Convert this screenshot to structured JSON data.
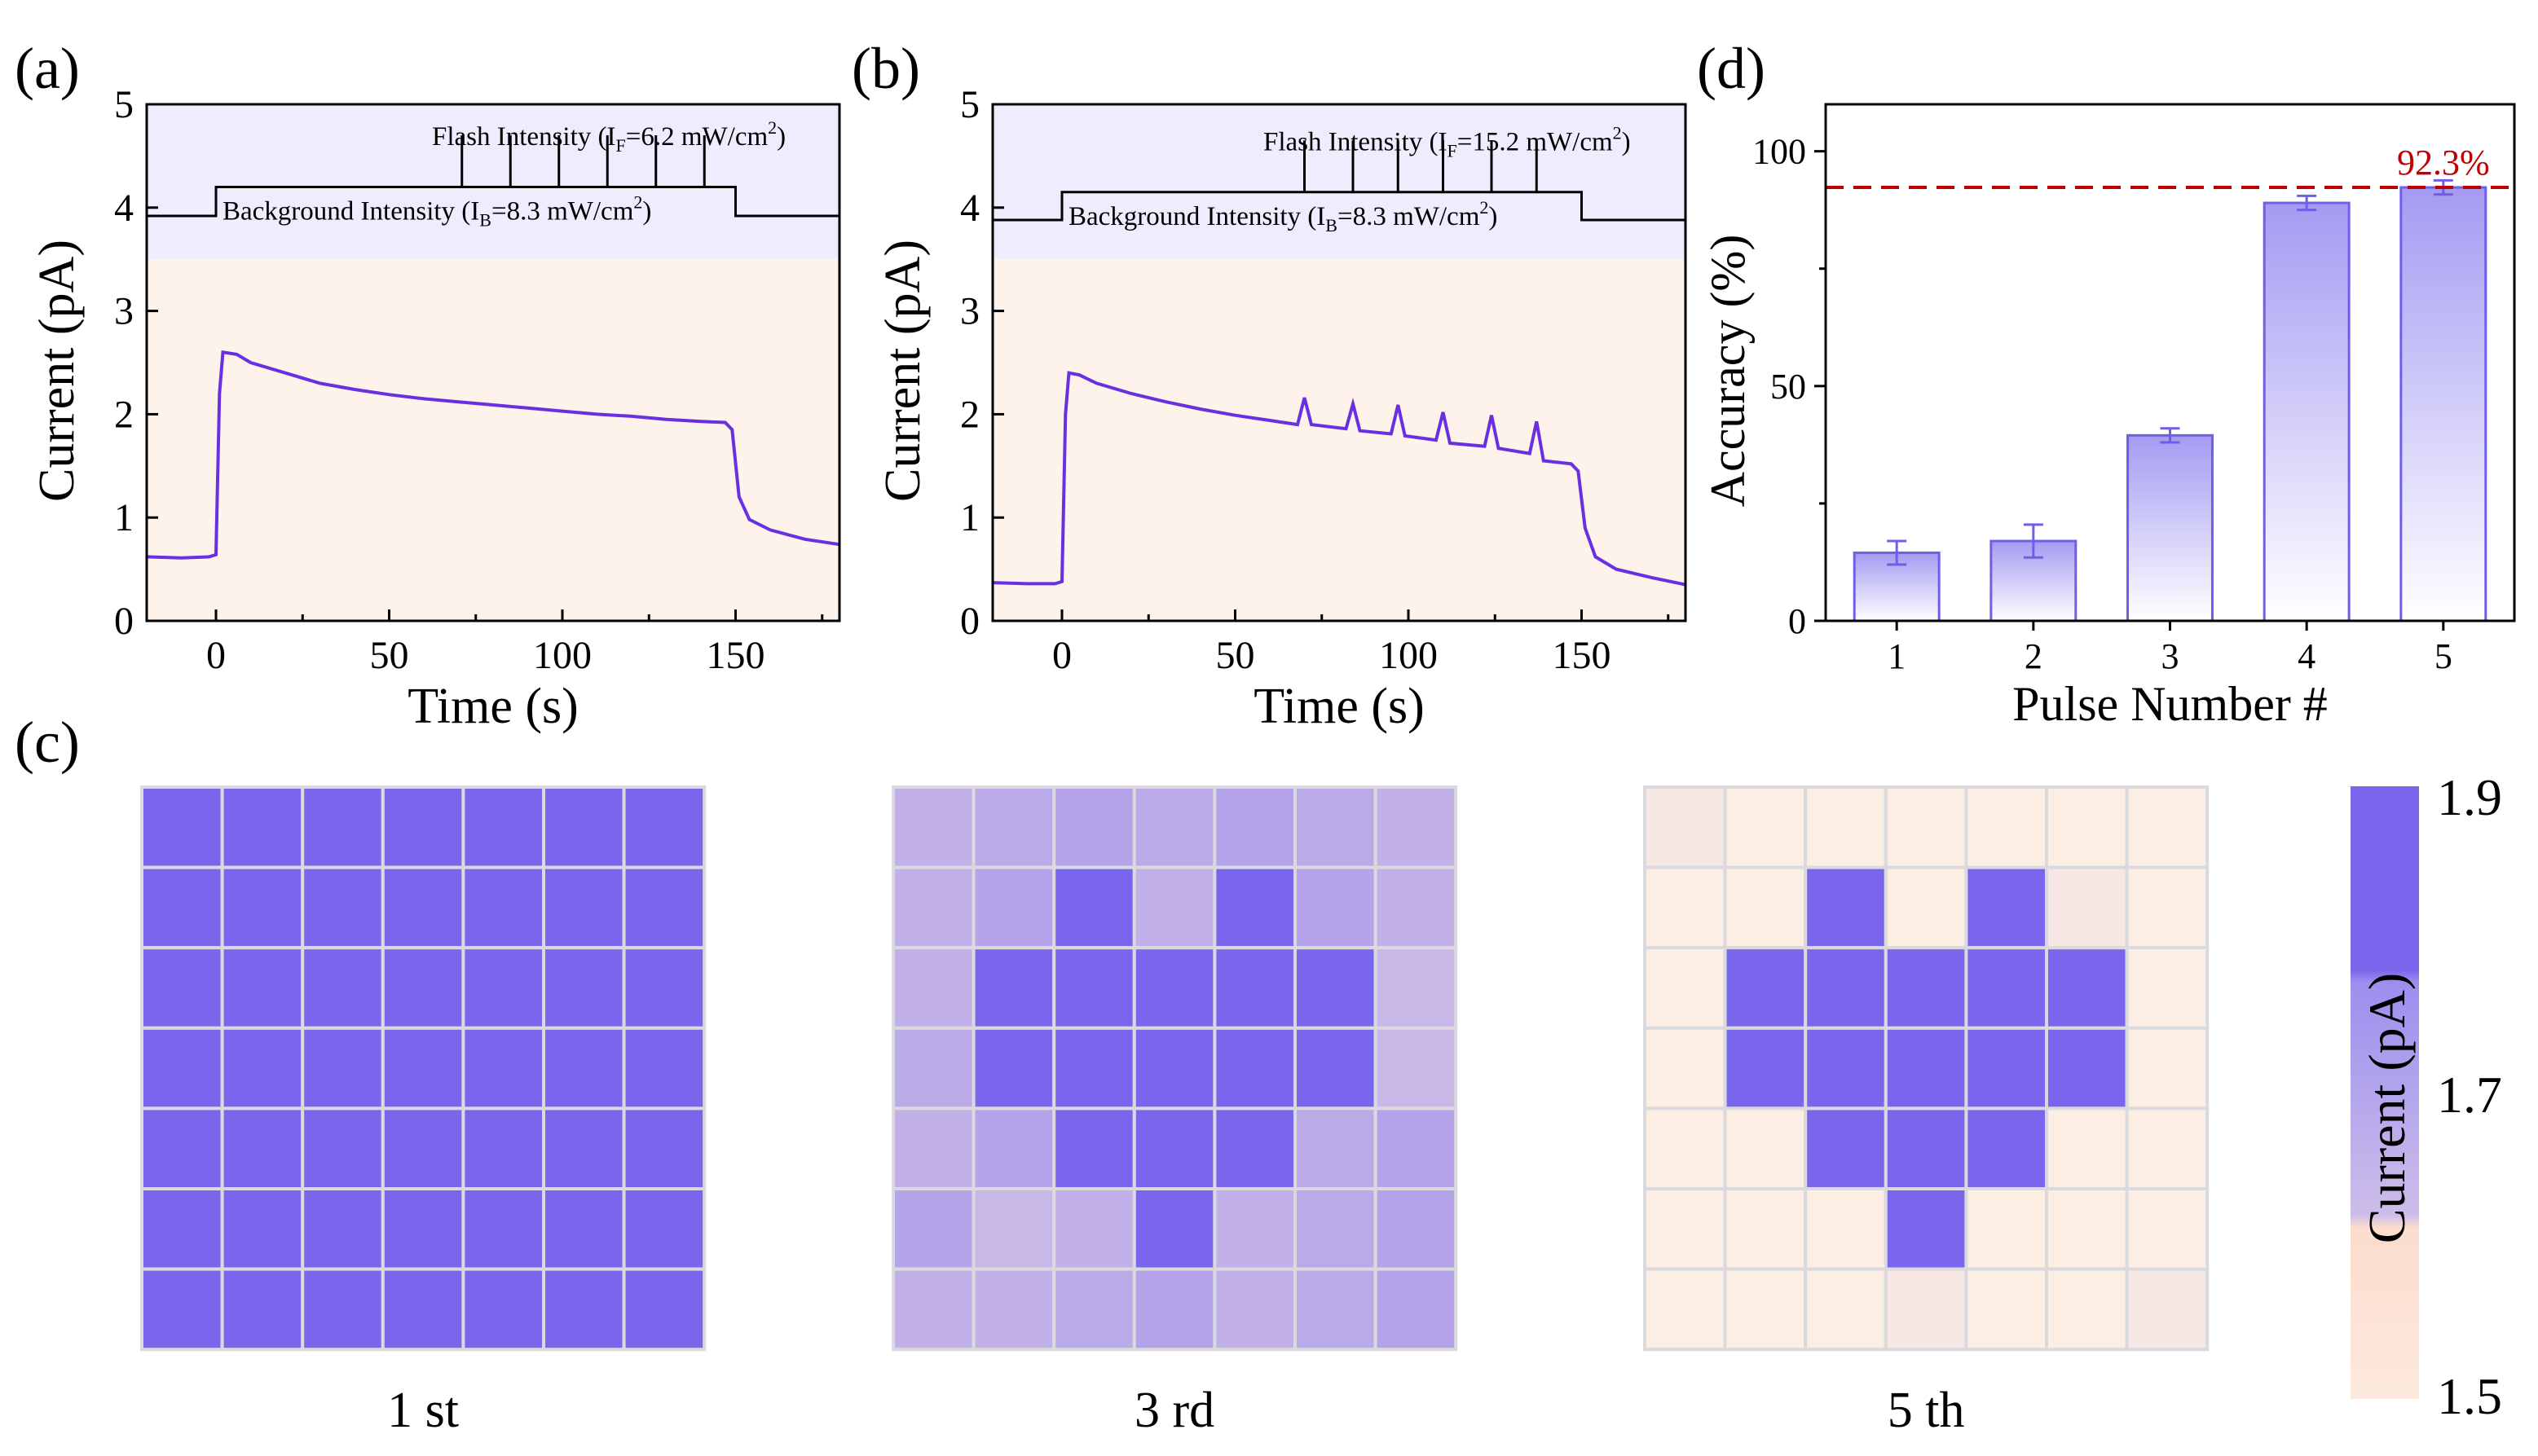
{
  "panel_labels": {
    "a": "(a)",
    "b": "(b)",
    "c": "(c)",
    "d": "(d)"
  },
  "chart_data": [
    {
      "id": "a",
      "type": "line",
      "xlabel": "Time (s)",
      "ylabel": "Current (pA)",
      "xlim": [
        -20,
        180
      ],
      "ylim": [
        0,
        5
      ],
      "xticks": [
        0,
        50,
        100,
        150
      ],
      "yticks": [
        0,
        1,
        2,
        3,
        4,
        5
      ],
      "background_region_upper": [
        3.5,
        5
      ],
      "flash_label": {
        "prefix": "Flash Intensity (I",
        "sub": "F",
        "mid": "=6.2 mW/cm",
        "sup": "2",
        "suffix": ")"
      },
      "bg_label": {
        "prefix": "Background Intensity (I",
        "sub": "B",
        "mid": "=8.3 mW/cm",
        "sup": "2",
        "suffix": ")"
      },
      "stimulus": {
        "base": 3.92,
        "high": 4.2,
        "on": 0,
        "off": 150,
        "flash_times": [
          71,
          85,
          99,
          113,
          127,
          141
        ],
        "flash_height": 0.5
      },
      "points": [
        [
          -20,
          0.62
        ],
        [
          -10,
          0.61
        ],
        [
          -2,
          0.62
        ],
        [
          0,
          0.64
        ],
        [
          1,
          2.2
        ],
        [
          2,
          2.6
        ],
        [
          6,
          2.58
        ],
        [
          10,
          2.5
        ],
        [
          20,
          2.4
        ],
        [
          30,
          2.3
        ],
        [
          40,
          2.24
        ],
        [
          50,
          2.19
        ],
        [
          60,
          2.15
        ],
        [
          70,
          2.12
        ],
        [
          80,
          2.09
        ],
        [
          90,
          2.06
        ],
        [
          100,
          2.03
        ],
        [
          110,
          2.0
        ],
        [
          120,
          1.98
        ],
        [
          130,
          1.95
        ],
        [
          140,
          1.93
        ],
        [
          147,
          1.92
        ],
        [
          149,
          1.85
        ],
        [
          151,
          1.2
        ],
        [
          154,
          0.98
        ],
        [
          160,
          0.88
        ],
        [
          170,
          0.79
        ],
        [
          180,
          0.74
        ]
      ]
    },
    {
      "id": "b",
      "type": "line",
      "xlabel": "Time (s)",
      "ylabel": "Current (pA)",
      "xlim": [
        -20,
        180
      ],
      "ylim": [
        0,
        5
      ],
      "xticks": [
        0,
        50,
        100,
        150
      ],
      "yticks": [
        0,
        1,
        2,
        3,
        4,
        5
      ],
      "background_region_upper": [
        3.5,
        5
      ],
      "flash_label": {
        "prefix": "Flash Intensity (I",
        "sub": "F",
        "mid": "=15.2 mW/cm",
        "sup": "2",
        "suffix": ")"
      },
      "bg_label": {
        "prefix": "Background Intensity (I",
        "sub": "B",
        "mid": "=8.3 mW/cm",
        "sup": "2",
        "suffix": ")"
      },
      "stimulus": {
        "base": 3.88,
        "high": 4.15,
        "on": 0,
        "off": 150,
        "flash_times": [
          70,
          84,
          97,
          110,
          124,
          137
        ],
        "flash_height": 0.5
      },
      "points": [
        [
          -20,
          0.37
        ],
        [
          -10,
          0.36
        ],
        [
          -2,
          0.36
        ],
        [
          0,
          0.38
        ],
        [
          1,
          2.0
        ],
        [
          2,
          2.4
        ],
        [
          5,
          2.38
        ],
        [
          10,
          2.3
        ],
        [
          20,
          2.2
        ],
        [
          30,
          2.12
        ],
        [
          40,
          2.05
        ],
        [
          50,
          1.99
        ],
        [
          60,
          1.94
        ],
        [
          68,
          1.9
        ],
        [
          70,
          2.16
        ],
        [
          72,
          1.9
        ],
        [
          82,
          1.86
        ],
        [
          84,
          2.1
        ],
        [
          86,
          1.84
        ],
        [
          95,
          1.81
        ],
        [
          97,
          2.09
        ],
        [
          99,
          1.79
        ],
        [
          108,
          1.75
        ],
        [
          110,
          2.02
        ],
        [
          112,
          1.72
        ],
        [
          122,
          1.69
        ],
        [
          124,
          1.99
        ],
        [
          126,
          1.67
        ],
        [
          135,
          1.62
        ],
        [
          137,
          1.93
        ],
        [
          139,
          1.55
        ],
        [
          147,
          1.52
        ],
        [
          149,
          1.45
        ],
        [
          151,
          0.9
        ],
        [
          154,
          0.62
        ],
        [
          160,
          0.5
        ],
        [
          170,
          0.42
        ],
        [
          180,
          0.35
        ]
      ]
    },
    {
      "id": "d",
      "type": "bar",
      "xlabel": "Pulse Number #",
      "ylabel": "Accuracy (%)",
      "categories": [
        "1",
        "2",
        "3",
        "4",
        "5"
      ],
      "values": [
        14.5,
        17,
        39.5,
        89,
        92.3
      ],
      "errors": [
        2.5,
        3.5,
        1.5,
        1.5,
        1.5
      ],
      "ylim": [
        0,
        110
      ],
      "yticks": [
        0,
        50,
        100
      ],
      "reference_line": {
        "value": 92.3,
        "label": "92.3%",
        "color": "#c00000"
      }
    }
  ],
  "heatmaps": {
    "colors": {
      "high": "#7966ec",
      "low": "#fdeee4"
    },
    "items": [
      {
        "label": "1 st",
        "values": [
          [
            1,
            1,
            1,
            1,
            1,
            1,
            1
          ],
          [
            1,
            1,
            1,
            1,
            1,
            1,
            1
          ],
          [
            1,
            1,
            1,
            1,
            1,
            1,
            1
          ],
          [
            1,
            1,
            1,
            1,
            1,
            1,
            1
          ],
          [
            1,
            1,
            1,
            1,
            1,
            1,
            1
          ],
          [
            1,
            1,
            1,
            1,
            1,
            1,
            1
          ],
          [
            1,
            1,
            1,
            1,
            1,
            1,
            1
          ]
        ]
      },
      {
        "label": "3 rd",
        "values": [
          [
            0.45,
            0.5,
            0.55,
            0.5,
            0.55,
            0.5,
            0.45
          ],
          [
            0.45,
            0.55,
            1,
            0.45,
            1,
            0.55,
            0.45
          ],
          [
            0.45,
            1,
            1,
            1,
            1,
            1,
            0.4
          ],
          [
            0.5,
            1,
            1,
            1,
            1,
            1,
            0.4
          ],
          [
            0.45,
            0.55,
            1,
            1,
            1,
            0.5,
            0.55
          ],
          [
            0.55,
            0.4,
            0.45,
            1,
            0.45,
            0.5,
            0.55
          ],
          [
            0.45,
            0.45,
            0.5,
            0.55,
            0.45,
            0.5,
            0.55
          ]
        ]
      },
      {
        "label": "5 th",
        "values": [
          [
            0.05,
            0,
            0,
            0,
            0,
            0,
            0
          ],
          [
            0,
            0,
            1,
            0,
            1,
            0.05,
            0
          ],
          [
            0,
            1,
            1,
            1,
            1,
            1,
            0
          ],
          [
            0,
            1,
            1,
            1,
            1,
            1,
            0
          ],
          [
            0,
            0,
            1,
            1,
            1,
            0,
            0
          ],
          [
            0,
            0,
            0,
            1,
            0,
            0,
            0
          ],
          [
            0,
            0,
            0,
            0.05,
            0,
            0,
            0.05
          ]
        ]
      }
    ]
  },
  "colorbar": {
    "title": "Current (pA)",
    "ticks": [
      "1.9",
      "1.7",
      "1.5"
    ]
  }
}
